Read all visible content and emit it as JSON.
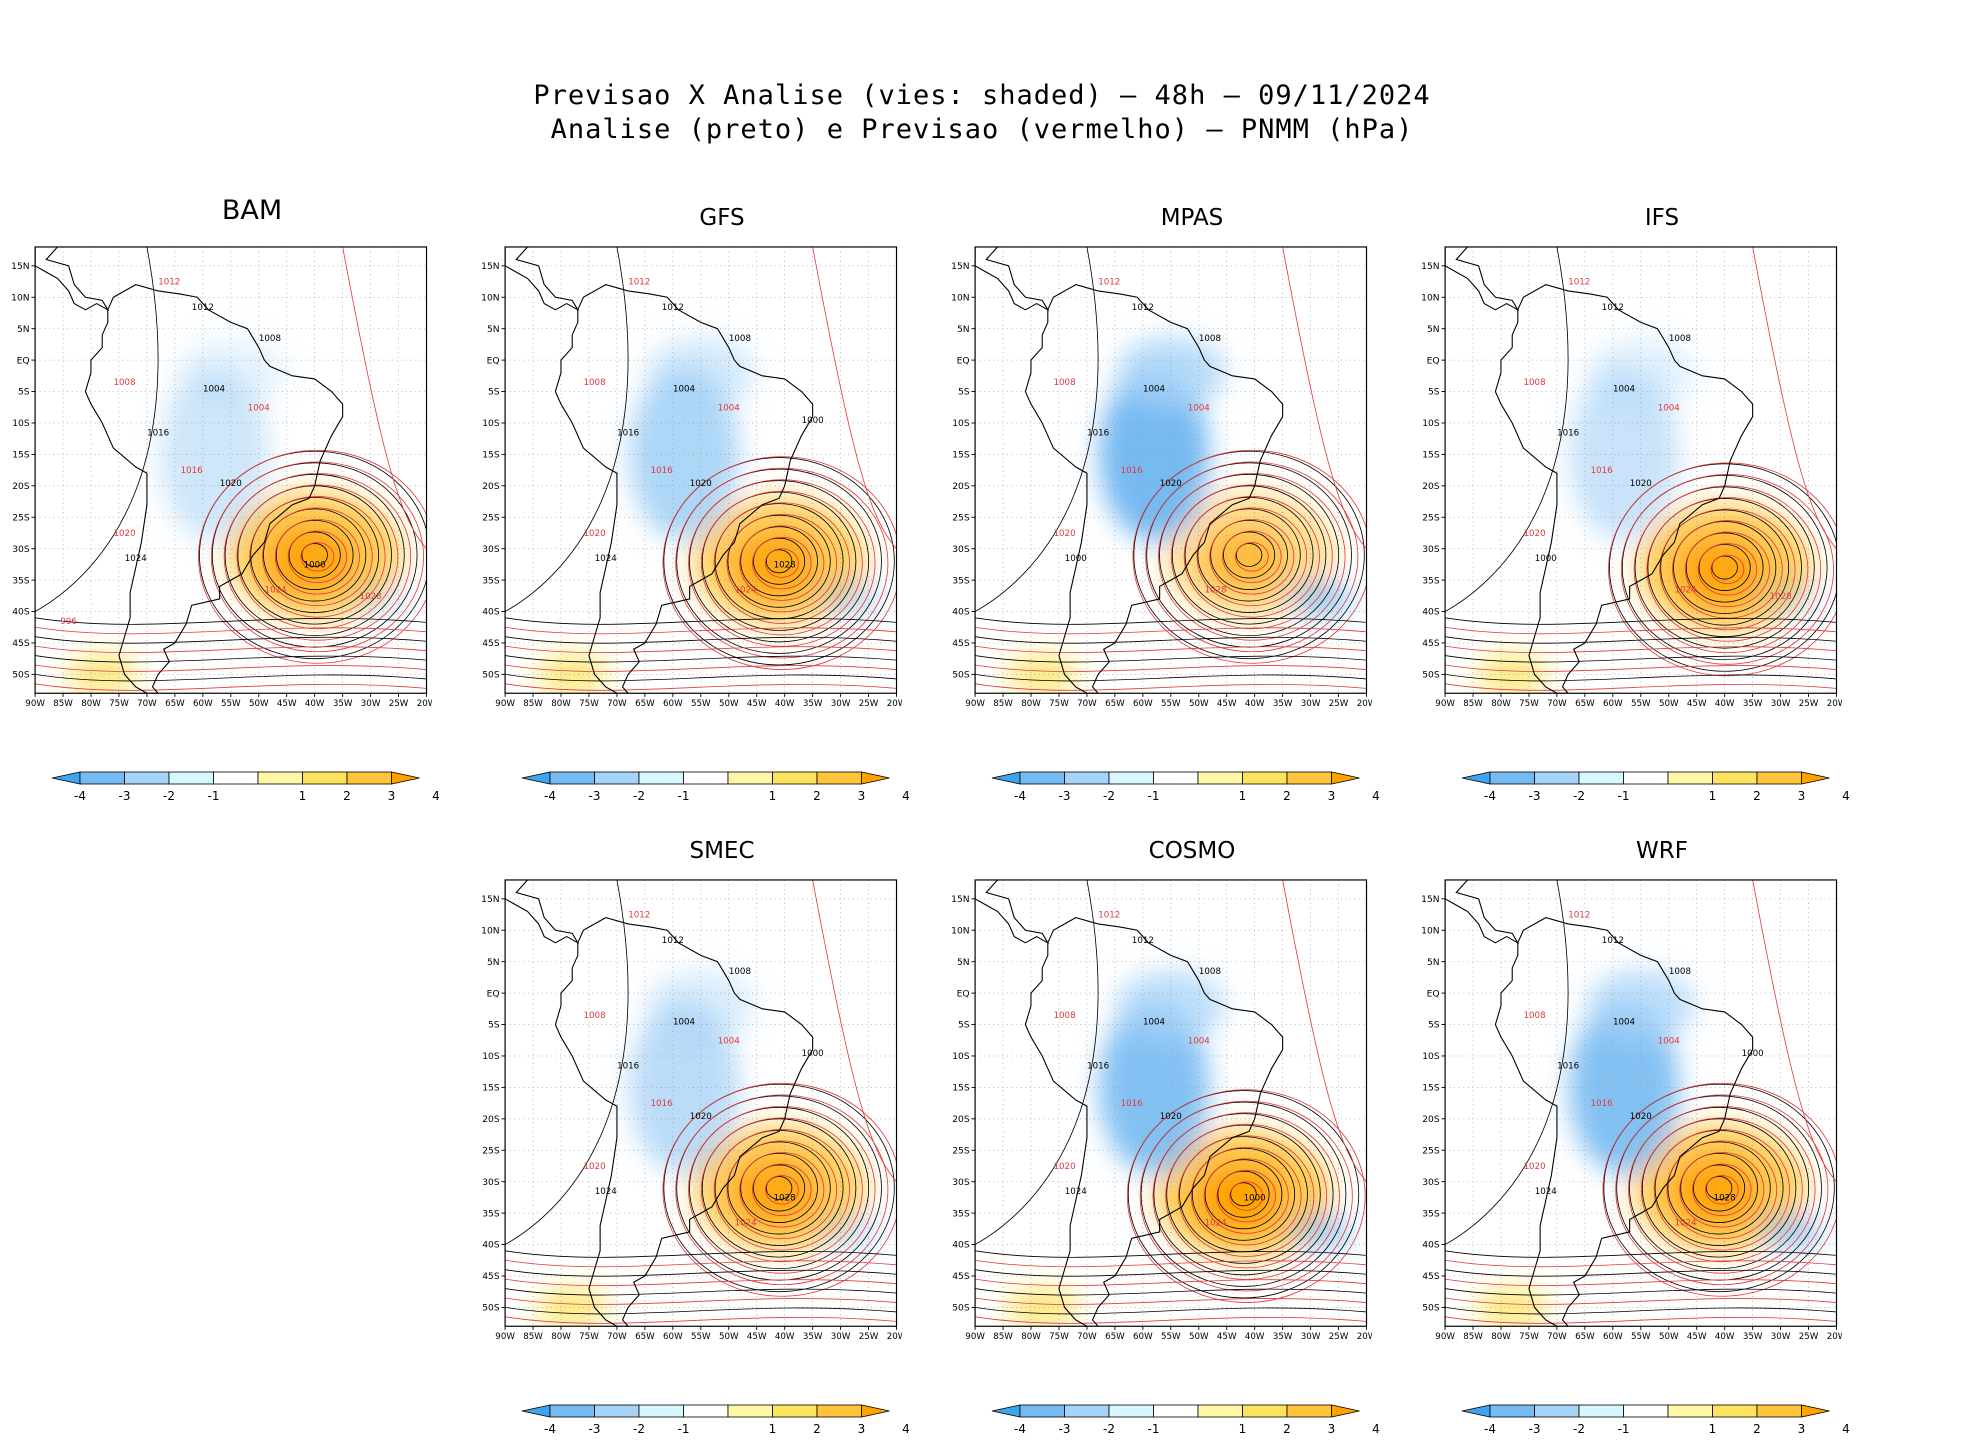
{
  "title": {
    "line1": "Previsao X Analise (vies: shaded) — 48h — 09/11/2024",
    "line2": "Analise (preto) e Previsao (vermelho) — PNMM (hPa)"
  },
  "legend": {
    "shaded": "vies",
    "black_contours": "Analise",
    "red_contours": "Previsao",
    "variable": "PNMM",
    "units": "hPa",
    "lead_time": "48h",
    "date": "09/11/2024"
  },
  "axes": {
    "lat_labels": [
      "15N",
      "10N",
      "5N",
      "EQ",
      "5S",
      "10S",
      "15S",
      "20S",
      "25S",
      "30S",
      "35S",
      "40S",
      "45S",
      "50S"
    ],
    "lon_labels": [
      "90W",
      "85W",
      "80W",
      "75W",
      "70W",
      "65W",
      "60W",
      "55W",
      "50W",
      "45W",
      "40W",
      "35W",
      "30W",
      "25W",
      "20W"
    ]
  },
  "colorbar": {
    "labels": [
      "-4",
      "-3",
      "-2",
      "-1",
      "1",
      "2",
      "3",
      "4"
    ],
    "colors": [
      "#3fa4ee",
      "#76baf2",
      "#a6d3f8",
      "#d5f7fd",
      "#ffffff",
      "#fff6a6",
      "#fee45d",
      "#ffc43a",
      "#ffa200"
    ]
  },
  "colors": {
    "analysis_contour": "#000000",
    "forecast_contour": "#e03a3a",
    "grid": "#9a9a9a"
  },
  "panels": [
    {
      "id": "BAM",
      "label": "BAM",
      "contour_labels_black": [
        "1012",
        "1008",
        "1004",
        "1016",
        "1020",
        "1024",
        "1000"
      ],
      "contour_labels_red": [
        "1012",
        "1008",
        "1004",
        "1016",
        "1020",
        "1024",
        "1028",
        "996"
      ]
    },
    {
      "id": "GFS",
      "label": "GFS",
      "contour_labels_black": [
        "1012",
        "1008",
        "1004",
        "1016",
        "1020",
        "1024",
        "1028",
        "1000"
      ],
      "contour_labels_red": [
        "1012",
        "1008",
        "1004",
        "1016",
        "1020",
        "1024"
      ]
    },
    {
      "id": "MPAS",
      "label": "MPAS",
      "contour_labels_black": [
        "1012",
        "1008",
        "1004",
        "1016",
        "1020",
        "1000"
      ],
      "contour_labels_red": [
        "1012",
        "1008",
        "1004",
        "1016",
        "1020",
        "1028"
      ]
    },
    {
      "id": "IFS",
      "label": "IFS",
      "contour_labels_black": [
        "1012",
        "1008",
        "1004",
        "1016",
        "1020",
        "1000"
      ],
      "contour_labels_red": [
        "1012",
        "1008",
        "1004",
        "1016",
        "1020",
        "1024",
        "1028"
      ]
    },
    {
      "id": "SMEC",
      "label": "SMEC",
      "contour_labels_black": [
        "1012",
        "1008",
        "1004",
        "1016",
        "1020",
        "1024",
        "1028",
        "1000"
      ],
      "contour_labels_red": [
        "1012",
        "1008",
        "1004",
        "1016",
        "1020",
        "1024"
      ]
    },
    {
      "id": "COSMO",
      "label": "COSMO",
      "contour_labels_black": [
        "1012",
        "1008",
        "1004",
        "1016",
        "1020",
        "1024",
        "1000"
      ],
      "contour_labels_red": [
        "1012",
        "1008",
        "1004",
        "1016",
        "1020",
        "1024"
      ]
    },
    {
      "id": "WRF",
      "label": "WRF",
      "contour_labels_black": [
        "1012",
        "1008",
        "1004",
        "1016",
        "1020",
        "1024",
        "1028",
        "1000"
      ],
      "contour_labels_red": [
        "1012",
        "1008",
        "1004",
        "1016",
        "1020",
        "1024"
      ]
    }
  ]
}
